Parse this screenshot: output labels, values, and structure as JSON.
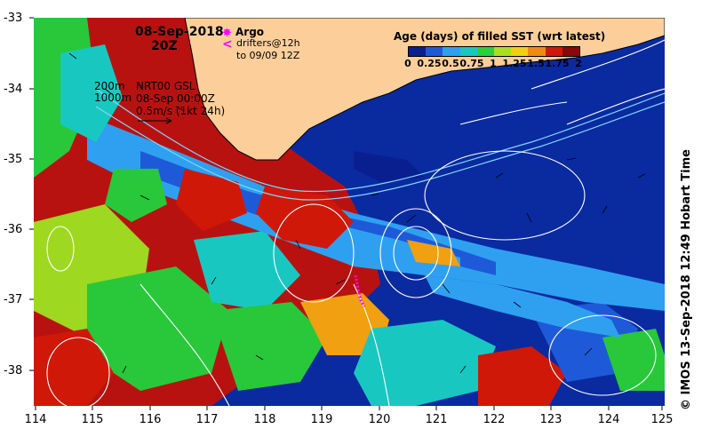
{
  "header": {
    "date": "08-Sep-2018",
    "time": "20Z"
  },
  "legend_argo": {
    "label": "Argo",
    "drifters_line1": "drifters@12h",
    "drifters_line2": "to 09/09 12Z",
    "argo_color": "#ff00ff"
  },
  "legend_depth": {
    "line1": "200m",
    "line2": "1000m"
  },
  "legend_current": {
    "line1": "NRT00 GSL",
    "line2": "08-Sep 00:00Z",
    "line3": "0.5m/s (1kt 24h)"
  },
  "colorbar": {
    "title": "Age (days) of filled SST (wrt latest)",
    "ticks": [
      "0",
      "0.25",
      "0.5",
      "0.75",
      "1",
      "1.25",
      "1.5",
      "1.75",
      "2"
    ],
    "colors": [
      "#0a1f8f",
      "#1e5ad8",
      "#2fa0f0",
      "#18c8c0",
      "#28d23a",
      "#a8e020",
      "#f0d010",
      "#f08a10",
      "#d01808",
      "#8a0808"
    ]
  },
  "axes": {
    "latitudes": [
      "-33",
      "-34",
      "-35",
      "-36",
      "-37",
      "-38"
    ],
    "longitudes": [
      "114",
      "115",
      "116",
      "117",
      "118",
      "119",
      "120",
      "121",
      "122",
      "123",
      "124",
      "125"
    ]
  },
  "credit": "© IMOS 13-Sep-2018 12:49 Hobart Time",
  "colors": {
    "land": "#fccf9a",
    "contour": "#ffffff",
    "isobath": "#7fd6ff"
  }
}
